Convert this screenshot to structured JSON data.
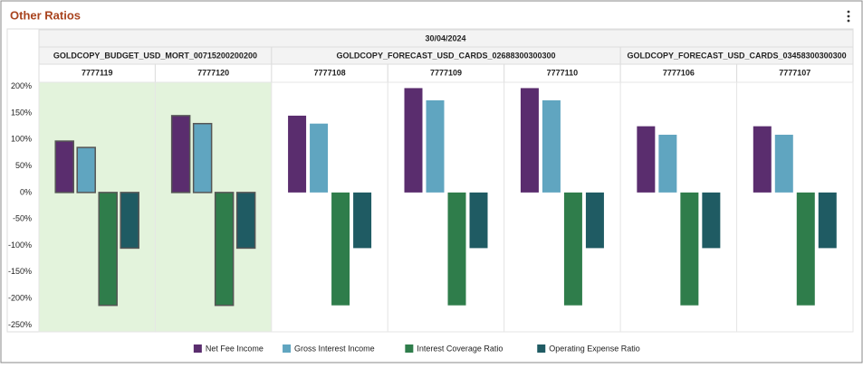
{
  "title": "Other Ratios",
  "chart_data": {
    "type": "bar",
    "period": "30/04/2024",
    "groups": [
      {
        "name": "GOLDCOPY_BUDGET_USD_MORT_00715200200200",
        "categories": [
          "7777119",
          "7777120"
        ],
        "selected": true
      },
      {
        "name": "GOLDCOPY_FORECAST_USD_CARDS_02688300300300",
        "categories": [
          "7777108",
          "7777109",
          "7777110"
        ],
        "selected": false
      },
      {
        "name": "GOLDCOPY_FORECAST_USD_CARDS_03458300300300",
        "categories": [
          "7777106",
          "7777107"
        ],
        "selected": false
      }
    ],
    "series": [
      {
        "name": "Net Fee Income",
        "color": "#5a2d6e",
        "values": [
          97,
          145,
          145,
          197,
          197,
          125,
          125
        ]
      },
      {
        "name": "Gross Interest Income",
        "color": "#60a5c0",
        "values": [
          85,
          130,
          130,
          174,
          174,
          109,
          109
        ]
      },
      {
        "name": "Interest Coverage Ratio",
        "color": "#2f7d4b",
        "values": [
          -213,
          -213,
          -213,
          -213,
          -213,
          -213,
          -213
        ]
      },
      {
        "name": "Operating Expense Ratio",
        "color": "#1f5b63",
        "values": [
          -105,
          -105,
          -105,
          -105,
          -105,
          -105,
          -105
        ]
      }
    ],
    "ylim": [
      -263,
      208
    ],
    "yticks": [
      {
        "value": 200,
        "label": "200%"
      },
      {
        "value": 150,
        "label": "150%"
      },
      {
        "value": 100,
        "label": "100%"
      },
      {
        "value": 50,
        "label": "50%"
      },
      {
        "value": 0,
        "label": "0%"
      },
      {
        "value": -50,
        "label": "-50%"
      },
      {
        "value": -100,
        "label": "-100%"
      },
      {
        "value": -150,
        "label": "-150%"
      },
      {
        "value": -200,
        "label": "-200%"
      },
      {
        "value": -250,
        "label": "-250%"
      }
    ],
    "legend": "bottom"
  }
}
